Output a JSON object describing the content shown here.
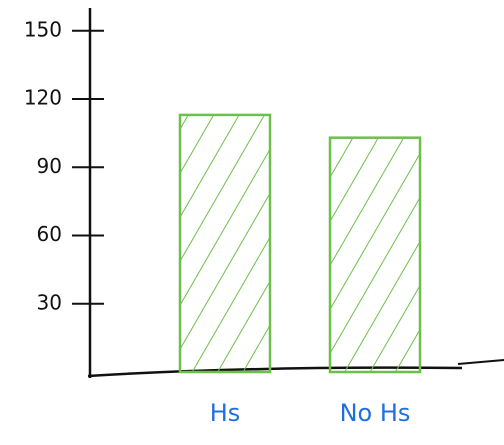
{
  "chart_data": {
    "type": "bar",
    "categories": [
      "Hs",
      "No Hs"
    ],
    "values": [
      113,
      103
    ],
    "color": "#6cc04a",
    "ylim": [
      0,
      160
    ],
    "yticks": [
      30,
      60,
      90,
      120,
      150
    ]
  }
}
